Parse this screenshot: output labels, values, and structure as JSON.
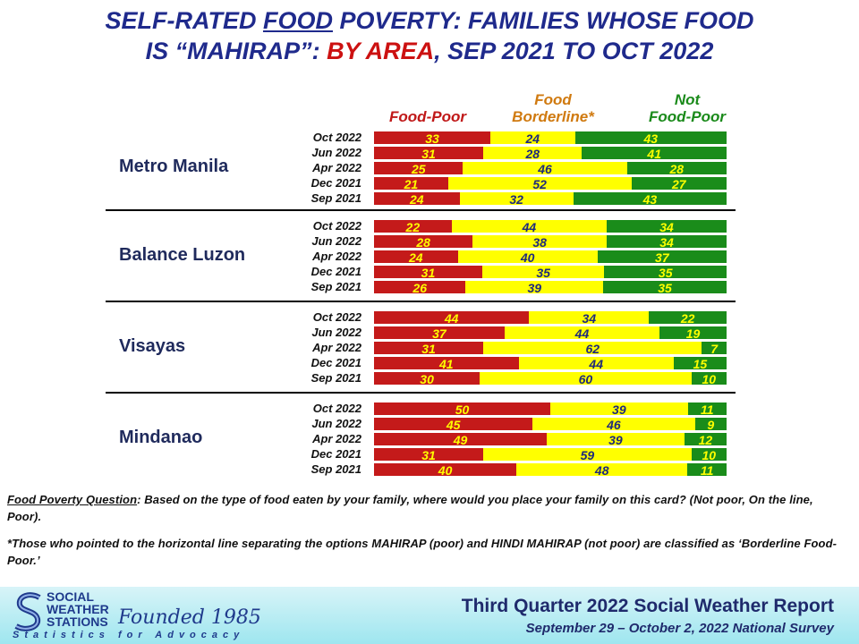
{
  "title": {
    "line1_pre": "SELF-RATED ",
    "line1_u": "FOOD",
    "line1_post": " POVERTY: FAMILIES WHOSE FOOD",
    "line2_pre": "IS “MAHIRAP”: ",
    "line2_red": "BY AREA",
    "line2_post": ", SEP 2021 TO OCT 2022"
  },
  "chart_data": {
    "type": "bar",
    "stacked": true,
    "orientation": "horizontal",
    "legend": [
      {
        "name": "Food-Poor",
        "line1": "",
        "line2": "Food-Poor",
        "color": "#c41a1a"
      },
      {
        "name": "Food Borderline*",
        "line1": "Food",
        "line2": "Borderline*",
        "color": "#ffff00"
      },
      {
        "name": "Not Food-Poor",
        "line1": "Not",
        "line2": "Food-Poor",
        "color": "#1a8c1a"
      }
    ],
    "groups": [
      {
        "area": "Metro Manila",
        "rows": [
          {
            "label": "Oct 2022",
            "values": [
              33,
              24,
              43
            ]
          },
          {
            "label": "Jun 2022",
            "values": [
              31,
              28,
              41
            ]
          },
          {
            "label": "Apr 2022",
            "values": [
              25,
              46,
              28
            ]
          },
          {
            "label": "Dec 2021",
            "values": [
              21,
              52,
              27
            ]
          },
          {
            "label": "Sep 2021",
            "values": [
              24,
              32,
              43
            ]
          }
        ]
      },
      {
        "area": "Balance Luzon",
        "rows": [
          {
            "label": "Oct 2022",
            "values": [
              22,
              44,
              34
            ]
          },
          {
            "label": "Jun 2022",
            "values": [
              28,
              38,
              34
            ]
          },
          {
            "label": "Apr 2022",
            "values": [
              24,
              40,
              37
            ]
          },
          {
            "label": "Dec 2021",
            "values": [
              31,
              35,
              35
            ]
          },
          {
            "label": "Sep 2021",
            "values": [
              26,
              39,
              35
            ]
          }
        ]
      },
      {
        "area": "Visayas",
        "rows": [
          {
            "label": "Oct 2022",
            "values": [
              44,
              34,
              22
            ]
          },
          {
            "label": "Jun 2022",
            "values": [
              37,
              44,
              19
            ]
          },
          {
            "label": "Apr 2022",
            "values": [
              31,
              62,
              7
            ]
          },
          {
            "label": "Dec 2021",
            "values": [
              41,
              44,
              15
            ]
          },
          {
            "label": "Sep 2021",
            "values": [
              30,
              60,
              10
            ]
          }
        ]
      },
      {
        "area": "Mindanao",
        "rows": [
          {
            "label": "Oct 2022",
            "values": [
              50,
              39,
              11
            ]
          },
          {
            "label": "Jun 2022",
            "values": [
              45,
              46,
              9
            ]
          },
          {
            "label": "Apr 2022",
            "values": [
              49,
              39,
              12
            ]
          },
          {
            "label": "Dec 2021",
            "values": [
              31,
              59,
              10
            ]
          },
          {
            "label": "Sep 2021",
            "values": [
              40,
              48,
              11
            ]
          }
        ]
      }
    ]
  },
  "footnotes": {
    "question_label": "Food Poverty Question",
    "question_text": ":  Based on the type of food eaten by your family, where would you place your family on this card?  (Not poor, On the line, Poor).",
    "borderline_note": "*Those who pointed to the horizontal line separating the options MAHIRAP (poor) and HINDI MAHIRAP (not poor) are classified as ‘Borderline Food-Poor.’"
  },
  "footer": {
    "org_line1": "SOCIAL",
    "org_line2": "WEATHER",
    "org_line3": "STATIONS",
    "founded": "Founded 1985",
    "tagline": "Statistics for Advocacy",
    "report_title": "Third Quarter 2022 Social Weather Report",
    "survey_dates": "September 29 – October 2, 2022 National Survey",
    "logo_icon": "sws-logo-icon"
  }
}
